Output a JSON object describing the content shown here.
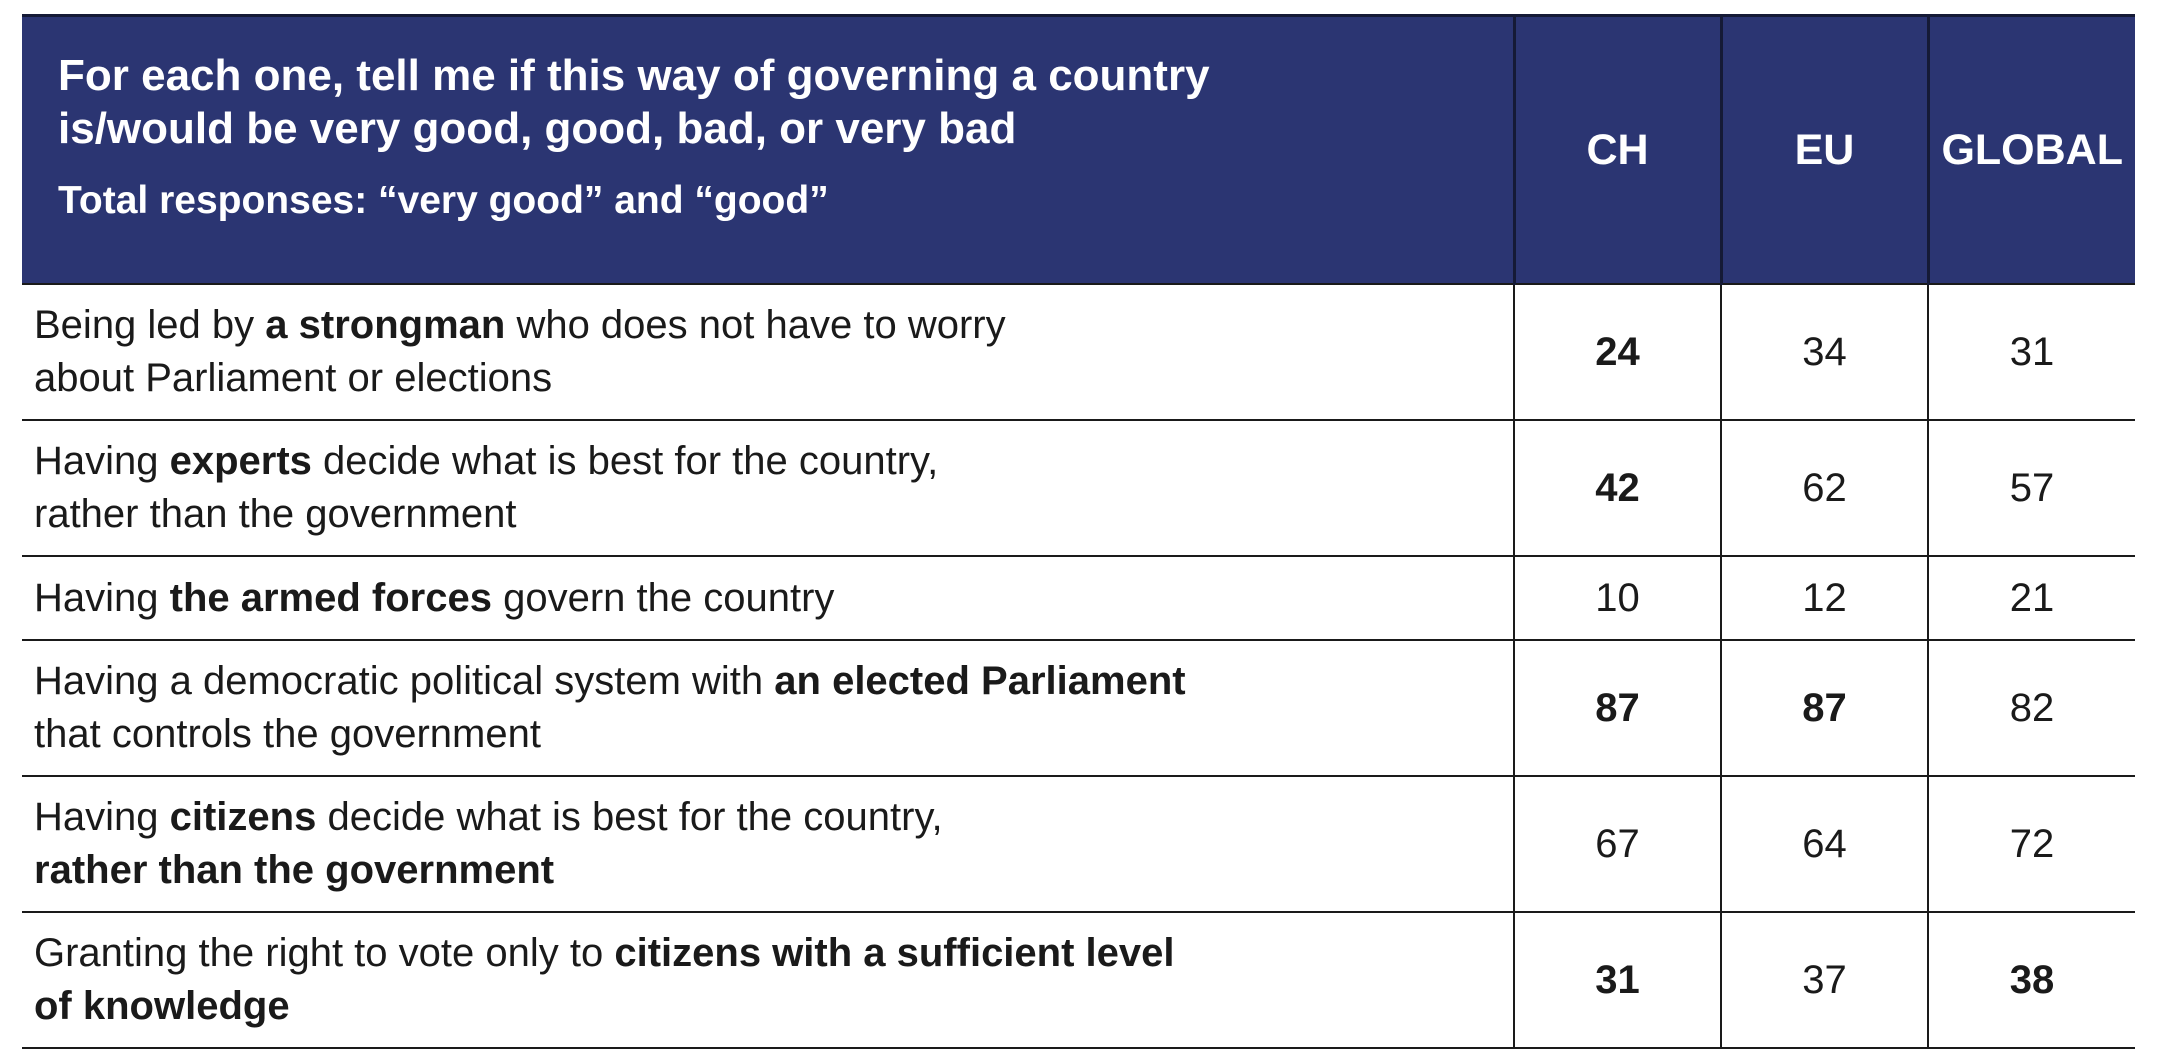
{
  "table": {
    "header": {
      "title": "For each one, tell me if this way of governing a country\nis/would be very good, good, bad, or very bad",
      "subtitle": "Total responses: “very good” and “good”",
      "columns": [
        "CH",
        "EU",
        "GLOBAL"
      ]
    },
    "rows": [
      {
        "lines": [
          [
            {
              "t": "Being led by ",
              "b": false
            },
            {
              "t": "a strongman",
              "b": true
            },
            {
              "t": " who does not have to worry",
              "b": false
            }
          ],
          [
            {
              "t": "about Parliament or elections",
              "b": false
            }
          ]
        ],
        "values": [
          {
            "v": "24",
            "b": true
          },
          {
            "v": "34",
            "b": false
          },
          {
            "v": "31",
            "b": false
          }
        ]
      },
      {
        "lines": [
          [
            {
              "t": "Having ",
              "b": false
            },
            {
              "t": "experts",
              "b": true
            },
            {
              "t": " decide what is best for the country,",
              "b": false
            }
          ],
          [
            {
              "t": "rather than the government",
              "b": false
            }
          ]
        ],
        "values": [
          {
            "v": "42",
            "b": true
          },
          {
            "v": "62",
            "b": false
          },
          {
            "v": "57",
            "b": false
          }
        ]
      },
      {
        "lines": [
          [
            {
              "t": "Having ",
              "b": false
            },
            {
              "t": "the armed forces",
              "b": true
            },
            {
              "t": " govern the country",
              "b": false
            }
          ]
        ],
        "values": [
          {
            "v": "10",
            "b": false
          },
          {
            "v": "12",
            "b": false
          },
          {
            "v": "21",
            "b": false
          }
        ]
      },
      {
        "lines": [
          [
            {
              "t": "Having a democratic political system with ",
              "b": false
            },
            {
              "t": "an elected Parliament",
              "b": true
            }
          ],
          [
            {
              "t": "that controls the government",
              "b": false
            }
          ]
        ],
        "values": [
          {
            "v": "87",
            "b": true
          },
          {
            "v": "87",
            "b": true
          },
          {
            "v": "82",
            "b": false
          }
        ]
      },
      {
        "lines": [
          [
            {
              "t": "Having ",
              "b": false
            },
            {
              "t": "citizens",
              "b": true
            },
            {
              "t": " decide what is best for the country,",
              "b": false
            }
          ],
          [
            {
              "t": "rather than the government",
              "b": true
            }
          ]
        ],
        "values": [
          {
            "v": "67",
            "b": false
          },
          {
            "v": "64",
            "b": false
          },
          {
            "v": "72",
            "b": false
          }
        ]
      },
      {
        "lines": [
          [
            {
              "t": "Granting the right to vote only to ",
              "b": false
            },
            {
              "t": "citizens with a sufficient level",
              "b": true
            }
          ],
          [
            {
              "t": "of knowledge",
              "b": true
            }
          ]
        ],
        "values": [
          {
            "v": "31",
            "b": true
          },
          {
            "v": "37",
            "b": false
          },
          {
            "v": "38",
            "b": true
          }
        ]
      }
    ]
  }
}
